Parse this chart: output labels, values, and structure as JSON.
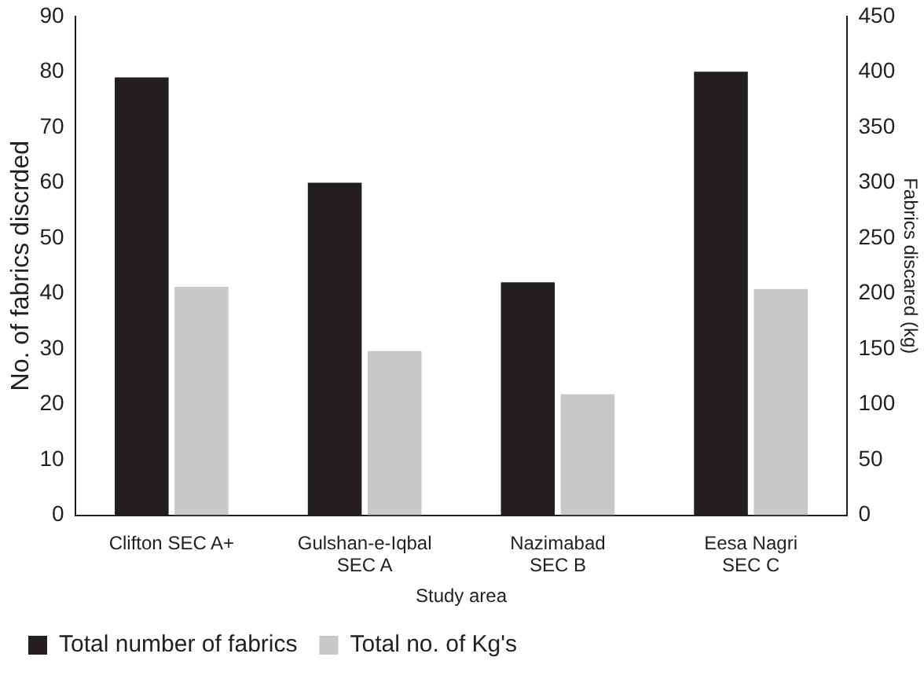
{
  "chart_data": {
    "type": "bar",
    "categories": [
      "Clifton SEC A+",
      "Gulshan-e-Iqbal\nSEC A",
      "Nazimabad\nSEC B",
      "Eesa Nagri\nSEC C"
    ],
    "xlabel": "Study area",
    "ylabel": "No. of fabrics discrded",
    "y2label": "Fabrics discared (kg)",
    "series": [
      {
        "name": "Total number of fabrics",
        "color": "#231f20",
        "values": [
          79,
          60,
          42,
          80
        ]
      },
      {
        "name": "Total no. of Kg's",
        "color": "#c8c8c8",
        "values": [
          206,
          148,
          109,
          204
        ],
        "axis": "y2"
      }
    ],
    "ylim": [
      0,
      90
    ],
    "yticks": [
      0,
      10,
      20,
      30,
      40,
      50,
      60,
      70,
      80,
      90
    ],
    "y2lim": [
      0,
      450
    ],
    "y2ticks": [
      0,
      50,
      100,
      150,
      200,
      250,
      300,
      350,
      400,
      450
    ],
    "grid": false,
    "legend": "bottom left"
  }
}
